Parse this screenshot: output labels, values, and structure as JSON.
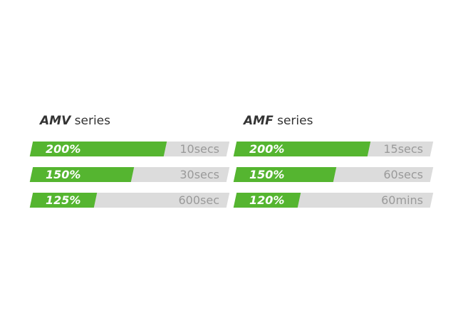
{
  "groups": [
    {
      "model": "AMV",
      "label": "series",
      "rows": [
        {
          "percent": "200%",
          "time": "10secs"
        },
        {
          "percent": "150%",
          "time": "30secs"
        },
        {
          "percent": "125%",
          "time": "600sec"
        }
      ]
    },
    {
      "model": "AMF",
      "label": "series",
      "rows": [
        {
          "percent": "200%",
          "time": "15secs"
        },
        {
          "percent": "150%",
          "time": "60secs"
        },
        {
          "percent": "120%",
          "time": "60mins"
        }
      ]
    }
  ]
}
